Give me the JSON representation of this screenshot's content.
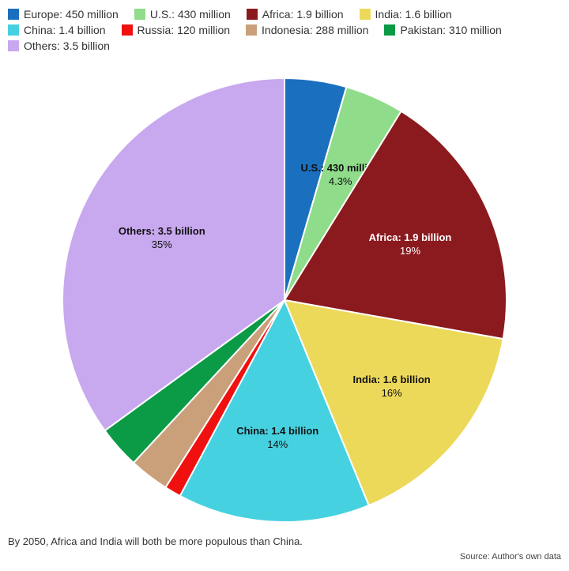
{
  "chart_data": {
    "type": "pie",
    "categories": [
      "Europe: 450 million",
      "U.S.: 430 million",
      "Africa: 1.9 billion",
      "India: 1.6 billion",
      "China: 1.4 billion",
      "Russia: 120 million",
      "Indonesia: 288 million",
      "Pakistan: 310 million",
      "Others: 3.5 billion"
    ],
    "values": [
      4.5,
      4.3,
      19,
      16,
      14,
      1.2,
      2.9,
      3.1,
      35
    ],
    "value_labels": [
      null,
      "4.3%",
      "19%",
      "16%",
      "14%",
      null,
      null,
      null,
      "35%"
    ],
    "colors": [
      "#1a6fbf",
      "#8fdc8a",
      "#8b1a1f",
      "#ecd95a",
      "#45d1e0",
      "#f01010",
      "#c9a07a",
      "#0b9a46",
      "#c8a8ee"
    ],
    "caption": "By 2050, Africa and India will both be more populous than China.",
    "source": "Source: Author's own data",
    "legend": "top-left"
  }
}
